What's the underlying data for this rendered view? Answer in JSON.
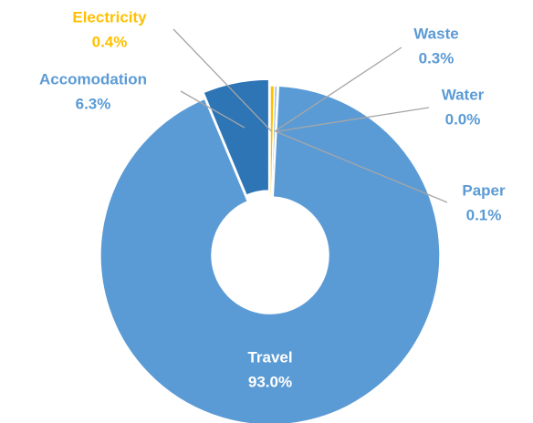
{
  "chart_data": {
    "type": "donut",
    "categories": [
      "Electricity",
      "Waste",
      "Water",
      "Paper",
      "Travel",
      "Accomodation"
    ],
    "values": [
      0.4,
      0.3,
      0.0,
      0.1,
      93.0,
      6.3
    ],
    "value_labels": [
      "0.4%",
      "0.3%",
      "0.0%",
      "0.1%",
      "93.0%",
      "6.3%"
    ],
    "colors": [
      "#ffc000",
      "#9dc3e6",
      "#5b9bd5",
      "#5b9bd5",
      "#5b9bd5",
      "#2e75b6"
    ],
    "label_colors": [
      "#ffc000",
      "#5b9bd5",
      "#5b9bd5",
      "#5b9bd5",
      "#ffffff",
      "#5b9bd5"
    ]
  }
}
